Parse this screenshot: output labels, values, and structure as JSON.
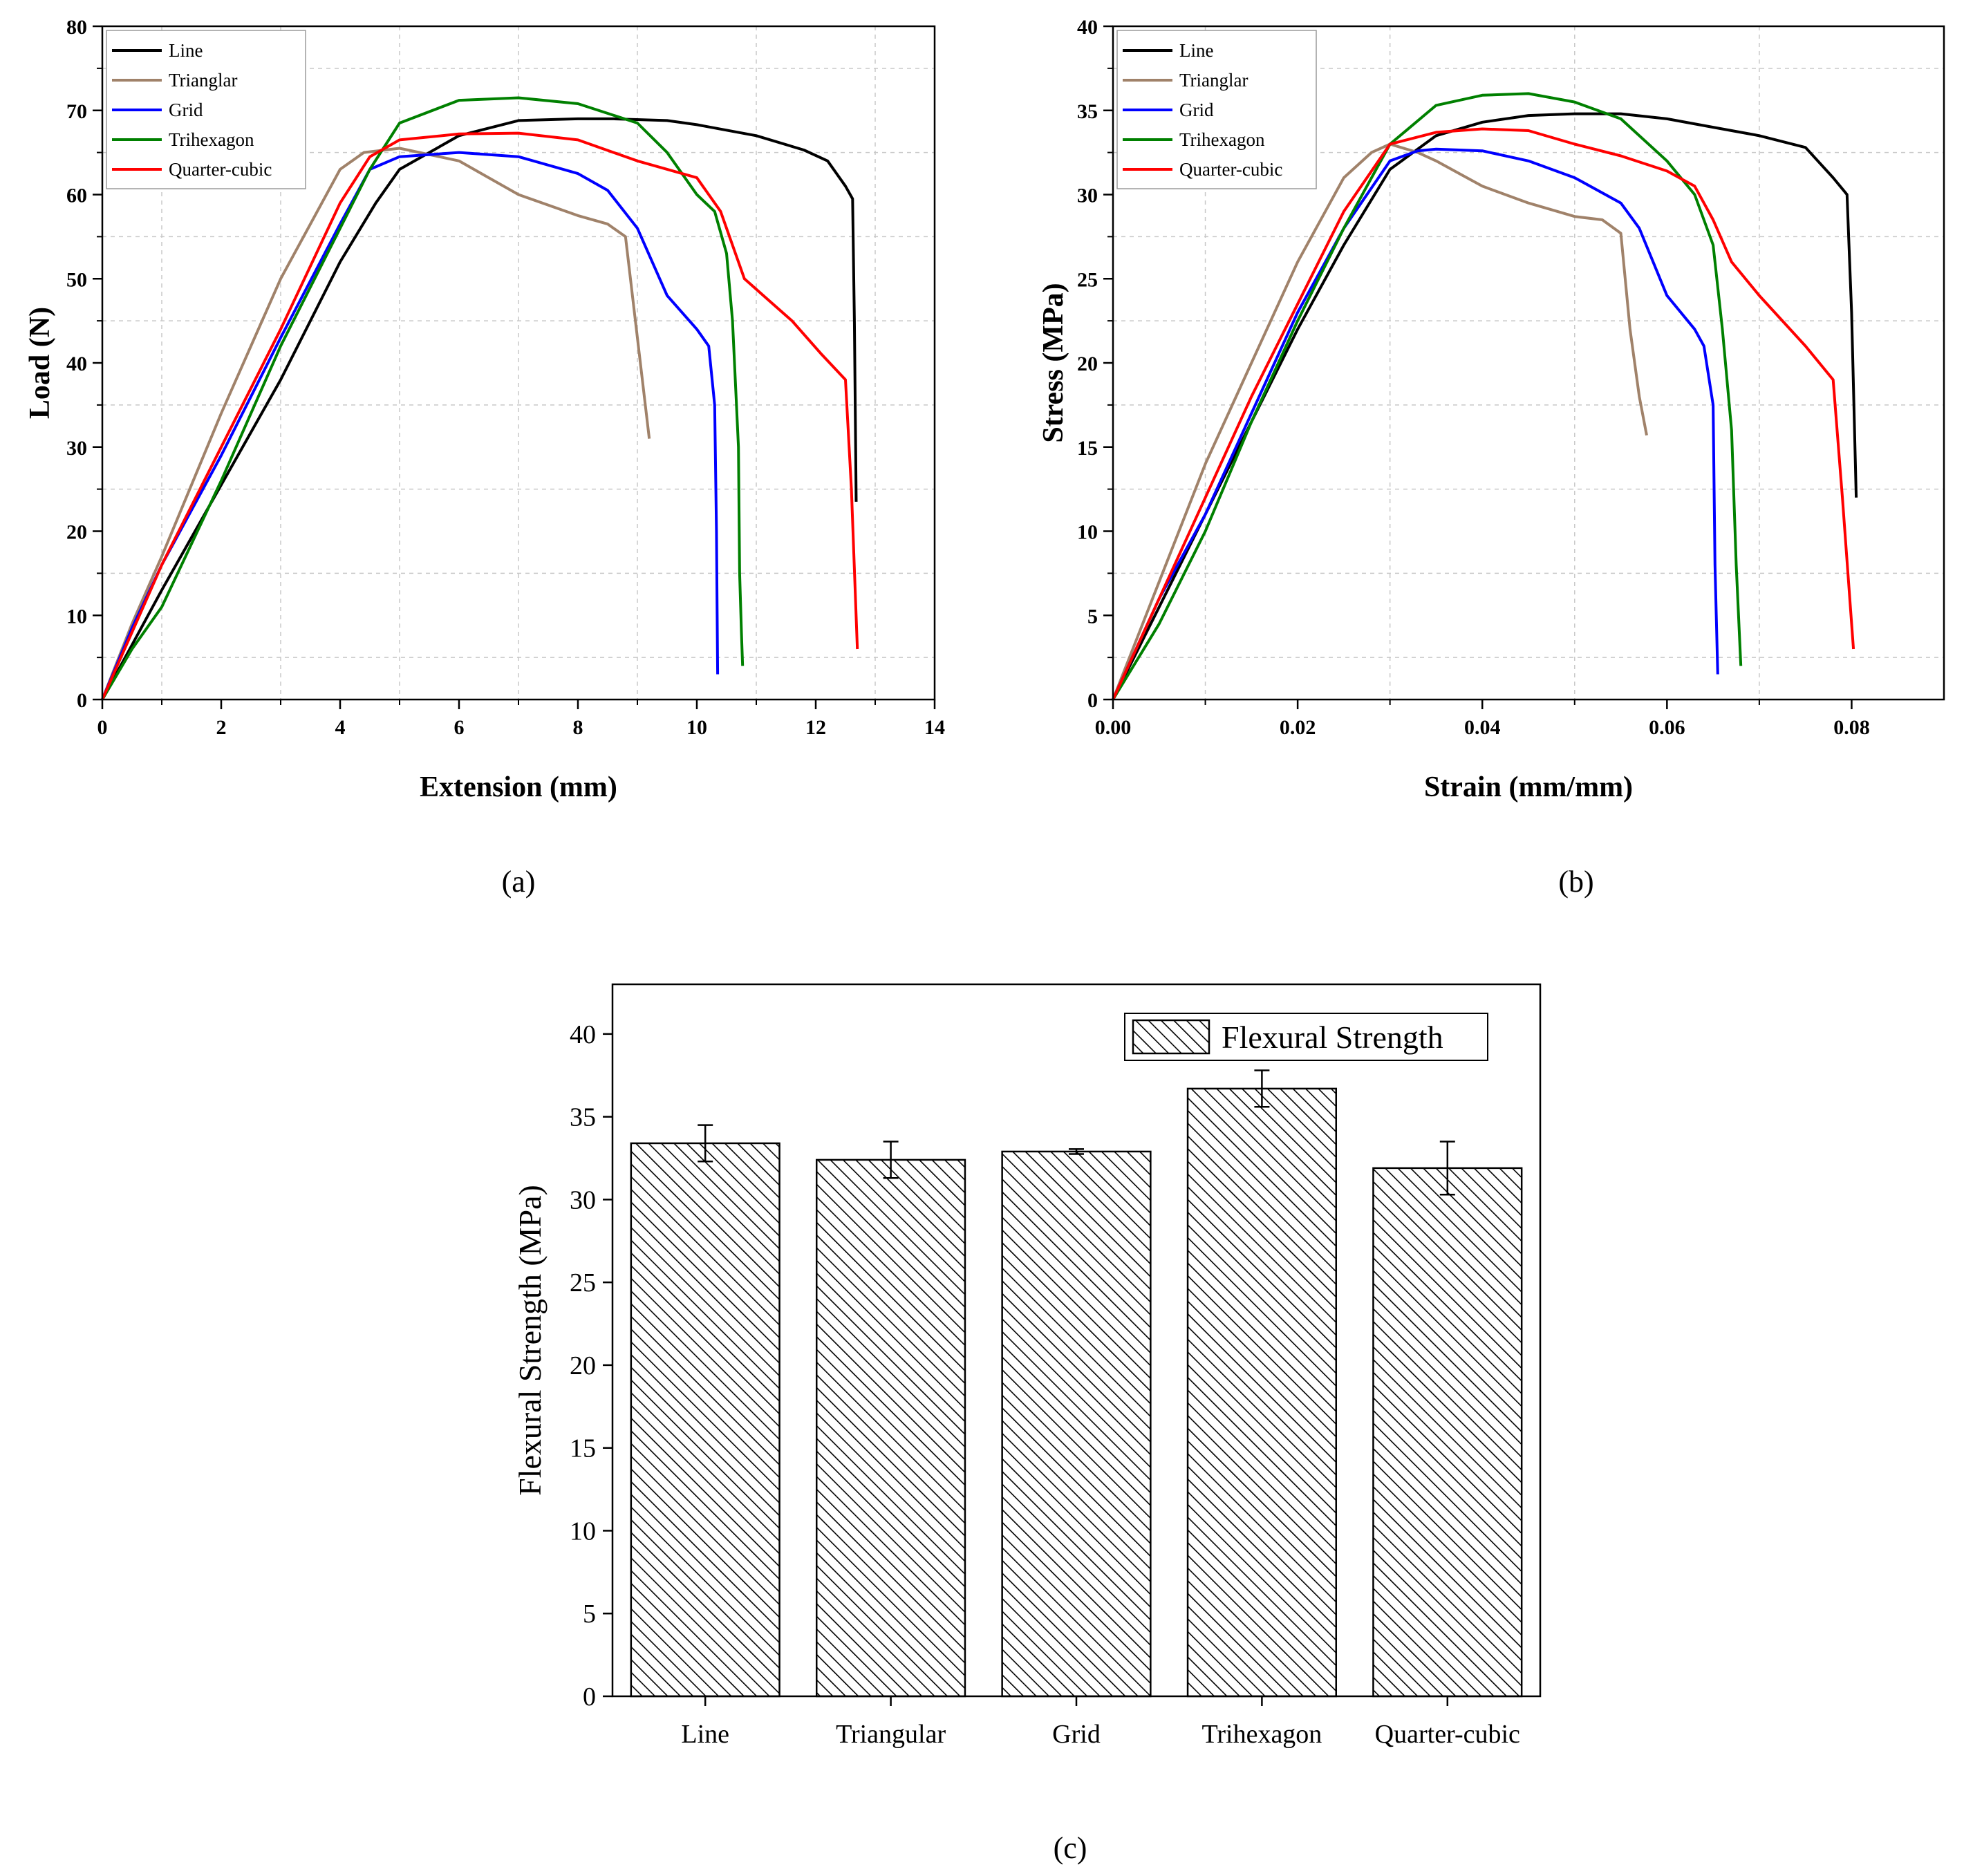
{
  "chart_data": [
    {
      "id": "a",
      "type": "line",
      "caption": "(a)",
      "xlabel": "Extension (mm)",
      "ylabel": "Load (N)",
      "xlim": [
        0,
        14
      ],
      "ylim": [
        0,
        80
      ],
      "xticks": [
        0,
        2,
        4,
        6,
        8,
        10,
        12,
        14
      ],
      "yticks": [
        0,
        10,
        20,
        30,
        40,
        50,
        60,
        70,
        80
      ],
      "legend_position": "top-left",
      "series": [
        {
          "name": "Line",
          "color": "#000000",
          "x": [
            0,
            0.5,
            1,
            2,
            3,
            4,
            4.6,
            5,
            6,
            7,
            8,
            8.6,
            9.5,
            10,
            11,
            11.8,
            12.2,
            12.5,
            12.62,
            12.65,
            12.68
          ],
          "y": [
            0,
            6.5,
            13,
            25.5,
            38,
            52,
            59,
            63,
            67,
            68.8,
            69,
            69,
            68.8,
            68.3,
            67,
            65.3,
            64,
            61,
            59.5,
            45,
            23.5
          ]
        },
        {
          "name": "Trianglar",
          "color": "#a0826a",
          "x": [
            0,
            0.5,
            1,
            2,
            3,
            4,
            4.4,
            5,
            6,
            7,
            8,
            8.5,
            8.8,
            9.0,
            9.2
          ],
          "y": [
            0,
            9,
            17,
            34,
            50,
            63,
            65,
            65.5,
            64,
            60,
            57.5,
            56.5,
            55,
            43,
            31
          ]
        },
        {
          "name": "Grid",
          "color": "#0000ff",
          "x": [
            0,
            0.5,
            1,
            2,
            3,
            4,
            4.5,
            5,
            6,
            7,
            8,
            8.5,
            9,
            9.5,
            10,
            10.2,
            10.3,
            10.33,
            10.35
          ],
          "y": [
            0,
            8.5,
            16,
            29,
            43,
            56.5,
            63,
            64.5,
            65,
            64.5,
            62.5,
            60.5,
            56,
            48,
            44,
            42,
            35,
            20,
            3
          ]
        },
        {
          "name": "Trihexagon",
          "color": "#008000",
          "x": [
            0,
            0.5,
            1,
            2,
            3,
            4,
            4.5,
            5,
            6,
            7,
            8,
            9,
            9.5,
            10,
            10.3,
            10.5,
            10.6,
            10.7,
            10.72,
            10.75,
            10.77
          ],
          "y": [
            0,
            6,
            11,
            26,
            42,
            56,
            63,
            68.5,
            71.2,
            71.5,
            70.8,
            68.5,
            65,
            60,
            58,
            53,
            45,
            30,
            15,
            8,
            4
          ]
        },
        {
          "name": "Quarter-cubic",
          "color": "#ff0000",
          "x": [
            0,
            0.5,
            1,
            2,
            3,
            4,
            4.5,
            5,
            6,
            7,
            8,
            9,
            10,
            10.4,
            10.8,
            11.2,
            11.6,
            12.1,
            12.5,
            12.6,
            12.7
          ],
          "y": [
            0,
            8,
            16,
            30,
            44,
            59,
            64.5,
            66.5,
            67.2,
            67.3,
            66.5,
            64,
            62,
            58,
            50,
            47.5,
            45,
            41,
            38,
            25,
            6
          ]
        }
      ]
    },
    {
      "id": "b",
      "type": "line",
      "caption": "(b)",
      "xlabel": "Strain (mm/mm)",
      "ylabel": "Stress (MPa)",
      "xlim": [
        0,
        0.09
      ],
      "ylim": [
        0,
        40
      ],
      "xticks": [
        "0.00",
        "0.02",
        "0.04",
        "0.06",
        "0.08"
      ],
      "yticks": [
        0,
        5,
        10,
        15,
        20,
        25,
        30,
        35,
        40
      ],
      "legend_position": "top-left",
      "series": [
        {
          "name": "Line",
          "color": "#000000",
          "x": [
            0,
            0.005,
            0.01,
            0.015,
            0.02,
            0.025,
            0.03,
            0.035,
            0.04,
            0.045,
            0.05,
            0.055,
            0.06,
            0.065,
            0.07,
            0.075,
            0.078,
            0.0795,
            0.08,
            0.0805
          ],
          "y": [
            0,
            5.5,
            11,
            16.5,
            22,
            27,
            31.5,
            33.5,
            34.3,
            34.7,
            34.8,
            34.8,
            34.5,
            34,
            33.5,
            32.8,
            31,
            30,
            23,
            12
          ]
        },
        {
          "name": "Trianglar",
          "color": "#a0826a",
          "x": [
            0,
            0.005,
            0.01,
            0.015,
            0.02,
            0.025,
            0.028,
            0.03,
            0.033,
            0.035,
            0.04,
            0.045,
            0.05,
            0.053,
            0.055,
            0.056,
            0.057,
            0.0578
          ],
          "y": [
            0,
            7,
            14,
            20,
            26,
            31,
            32.5,
            33,
            32.5,
            32,
            30.5,
            29.5,
            28.7,
            28.5,
            27.7,
            22,
            18,
            15.7
          ]
        },
        {
          "name": "Grid",
          "color": "#0000ff",
          "x": [
            0,
            0.005,
            0.01,
            0.015,
            0.02,
            0.025,
            0.03,
            0.033,
            0.035,
            0.04,
            0.045,
            0.05,
            0.055,
            0.057,
            0.06,
            0.063,
            0.064,
            0.065,
            0.0652,
            0.0655
          ],
          "y": [
            0,
            6,
            11,
            17,
            23,
            28,
            32,
            32.6,
            32.7,
            32.6,
            32,
            31,
            29.5,
            28,
            24,
            22,
            21,
            17.5,
            8,
            1.5
          ]
        },
        {
          "name": "Trihexagon",
          "color": "#008000",
          "x": [
            0,
            0.005,
            0.01,
            0.015,
            0.02,
            0.025,
            0.03,
            0.035,
            0.04,
            0.045,
            0.05,
            0.055,
            0.06,
            0.063,
            0.065,
            0.066,
            0.067,
            0.0675,
            0.068
          ],
          "y": [
            0,
            4.5,
            10,
            16.5,
            22.5,
            28,
            33,
            35.3,
            35.9,
            36,
            35.5,
            34.5,
            32,
            30,
            27,
            22,
            16,
            8,
            2
          ]
        },
        {
          "name": "Quarter-cubic",
          "color": "#ff0000",
          "x": [
            0,
            0.005,
            0.01,
            0.015,
            0.02,
            0.025,
            0.03,
            0.035,
            0.04,
            0.045,
            0.05,
            0.055,
            0.06,
            0.063,
            0.065,
            0.067,
            0.07,
            0.075,
            0.078,
            0.079,
            0.0802
          ],
          "y": [
            0,
            6,
            12,
            18,
            23.5,
            29,
            33,
            33.7,
            33.9,
            33.8,
            33,
            32.3,
            31.4,
            30.5,
            28.5,
            26,
            24,
            21,
            19,
            12,
            3
          ]
        }
      ]
    },
    {
      "id": "c",
      "type": "bar",
      "caption": "(c)",
      "xlabel": "",
      "ylabel": "Flexural Strength (MPa)",
      "ylim": [
        0,
        43
      ],
      "yticks": [
        0,
        5,
        10,
        15,
        20,
        25,
        30,
        35,
        40
      ],
      "categories": [
        "Line",
        "Triangular",
        "Grid",
        "Trihexagon",
        "Quarter-cubic"
      ],
      "series": [
        {
          "name": "Flexural Strength",
          "pattern": "diagonal-hatch",
          "values": [
            33.4,
            32.4,
            32.9,
            36.7,
            31.9
          ],
          "errors": [
            1.1,
            1.1,
            0.15,
            1.1,
            1.6
          ]
        }
      ],
      "legend_position": "top-right"
    }
  ]
}
